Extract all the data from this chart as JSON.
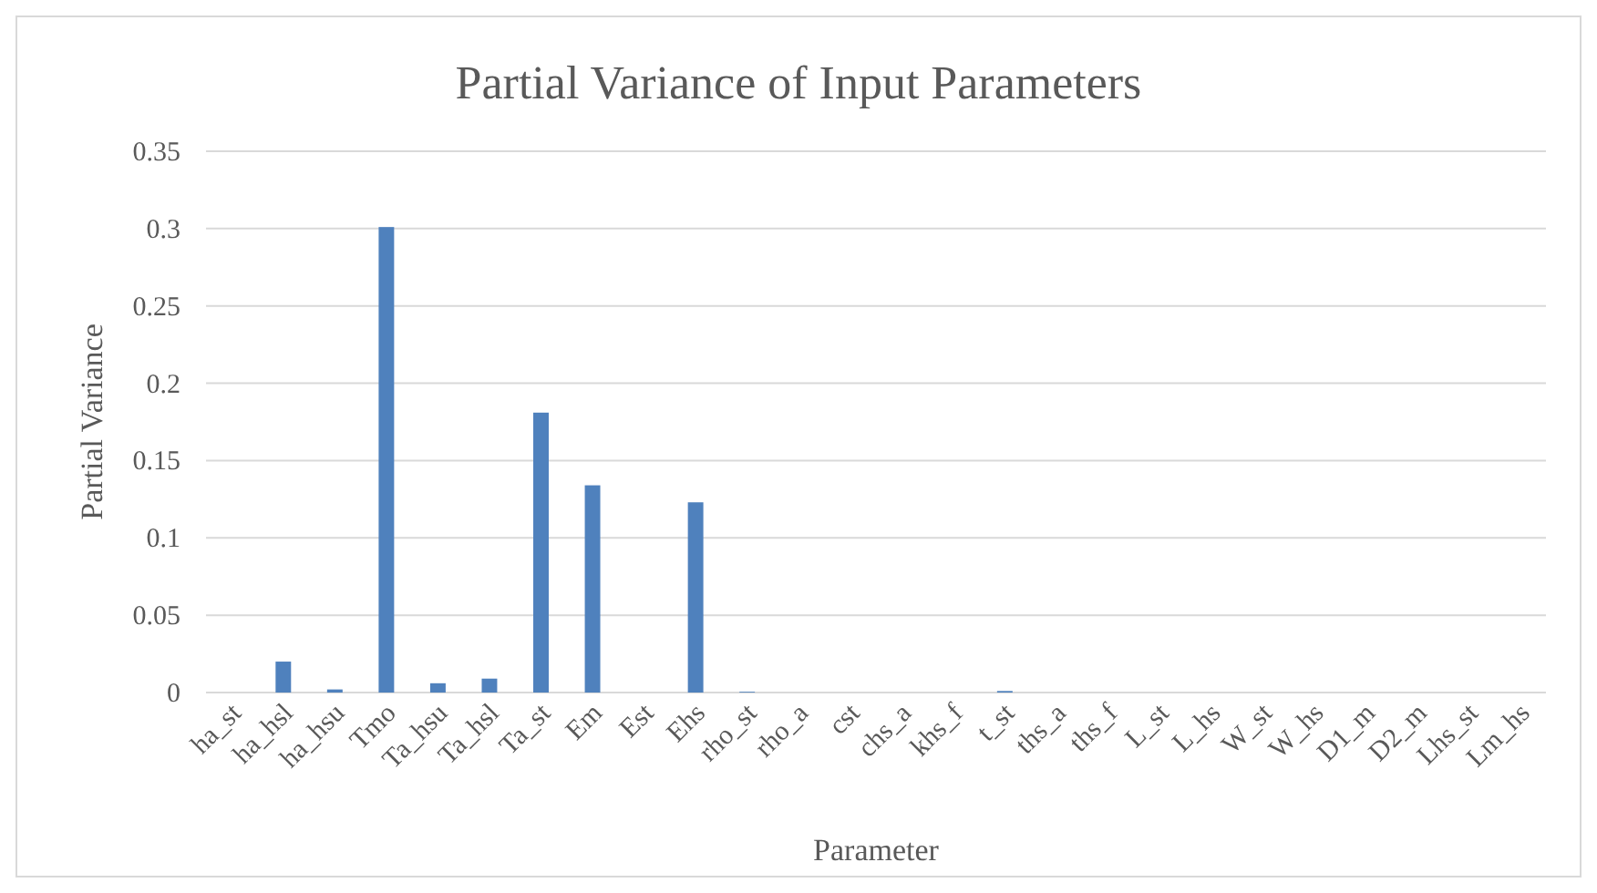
{
  "chart_data": {
    "type": "bar",
    "title": "Partial Variance of Input Parameters",
    "xlabel": "Parameter",
    "ylabel": "Partial Variance",
    "categories": [
      "ha_st",
      "ha_hsl",
      "ha_hsu",
      "Tmo",
      "Ta_hsu",
      "Ta_hsl",
      "Ta_st",
      "Em",
      "Est",
      "Ehs",
      "rho_st",
      "rho_a",
      "cst",
      "chs_a",
      "khs_f",
      "t_st",
      "ths_a",
      "ths_f",
      "L_st",
      "L_hs",
      "W_st",
      "W_hs",
      "D1_m",
      "D2_m",
      "Lhs_st",
      "Lm_hs"
    ],
    "values": [
      0,
      0.02,
      0.002,
      0.301,
      0.006,
      0.009,
      0.181,
      0.134,
      0,
      0.123,
      0.0005,
      0,
      0,
      0,
      0,
      0.001,
      0,
      0,
      0,
      0,
      0,
      0,
      0,
      0,
      0,
      0
    ],
    "color": "#4f81bd",
    "ylim": [
      0,
      0.35
    ],
    "yticks": [
      0,
      0.05,
      0.1,
      0.15,
      0.2,
      0.25,
      0.3,
      0.35
    ],
    "grid": "y"
  }
}
